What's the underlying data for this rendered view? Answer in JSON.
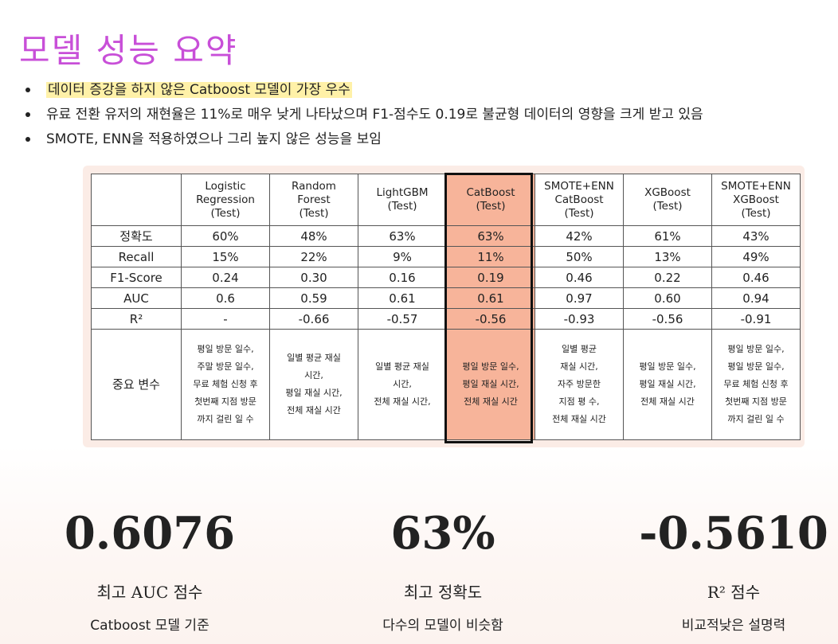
{
  "title": "모델 성능 요약",
  "bullets": [
    "데이터 증강을 하지 않은 Catboost 모델이 가장 우수",
    "유료 전환 유저의 재현율은 11%로 매우 낮게 나타났으며 F1-점수도 0.19로 불균형 데이터의 영향을 크게 받고 있음",
    "SMOTE, ENN을 적용하였으나 그리 높지 않은 성능을 보임"
  ],
  "table": {
    "columns": [
      "Logistic\nRegression\n(Test)",
      "Random\nForest\n(Test)",
      "LightGBM\n(Test)",
      "CatBoost\n(Test)",
      "SMOTE+ENN\nCatBoost\n(Test)",
      "XGBoost\n(Test)",
      "SMOTE+ENN\nXGBoost\n(Test)"
    ],
    "rows": [
      {
        "label": "정확도",
        "values": [
          "60%",
          "48%",
          "63%",
          "63%",
          "42%",
          "61%",
          "43%"
        ]
      },
      {
        "label": "Recall",
        "values": [
          "15%",
          "22%",
          "9%",
          "11%",
          "50%",
          "13%",
          "49%"
        ]
      },
      {
        "label": "F1-Score",
        "values": [
          "0.24",
          "0.30",
          "0.16",
          "0.19",
          "0.46",
          "0.22",
          "0.46"
        ]
      },
      {
        "label": "AUC",
        "values": [
          "0.6",
          "0.59",
          "0.61",
          "0.61",
          "0.97",
          "0.60",
          "0.94"
        ]
      },
      {
        "label": "R²",
        "values": [
          "-",
          "-0.66",
          "-0.57",
          "-0.56",
          "-0.93",
          "-0.56",
          "-0.91"
        ]
      }
    ],
    "vars_row": {
      "label": "중요 변수",
      "values": [
        "평일 방문 일수,\n주말 방문 일수,\n무료 체험 신청 후\n첫번째 지점 방문\n까지 걸린 일 수",
        "일별 평균 재실\n시간,\n평일 재실 시간,\n전체 재실 시간",
        "일별 평균 재실\n시간,\n전체 재실 시간,",
        "평일 방문 일수,\n평일 재실 시간,\n전체 재실 시간",
        "일별 평균\n재실 시간,\n자주 방문한\n지점 평 수,\n전체 재실 시간",
        "평일 방문 일수,\n평일 재실 시간,\n전체 재실 시간",
        "평일 방문 일수,\n평일 방문 일수,\n무료 체험 신청 후\n첫번째 지점 방문\n까지 걸린 일 수"
      ]
    },
    "highlight_color": "#f7b49a"
  },
  "stats": [
    {
      "value": "0.6076",
      "label": "최고 AUC 점수",
      "sub": "Catboost 모델 기준"
    },
    {
      "value": "63%",
      "label": "최고 정확도",
      "sub": "다수의 모델이 비슷함"
    },
    {
      "value": "-0.5610",
      "label": "R² 점수",
      "sub": "비교적낮은 설명력"
    }
  ],
  "colors": {
    "title": "#c84fd8",
    "highlight_bullet": "#fff1a8",
    "table_panel": "#fbece6"
  }
}
